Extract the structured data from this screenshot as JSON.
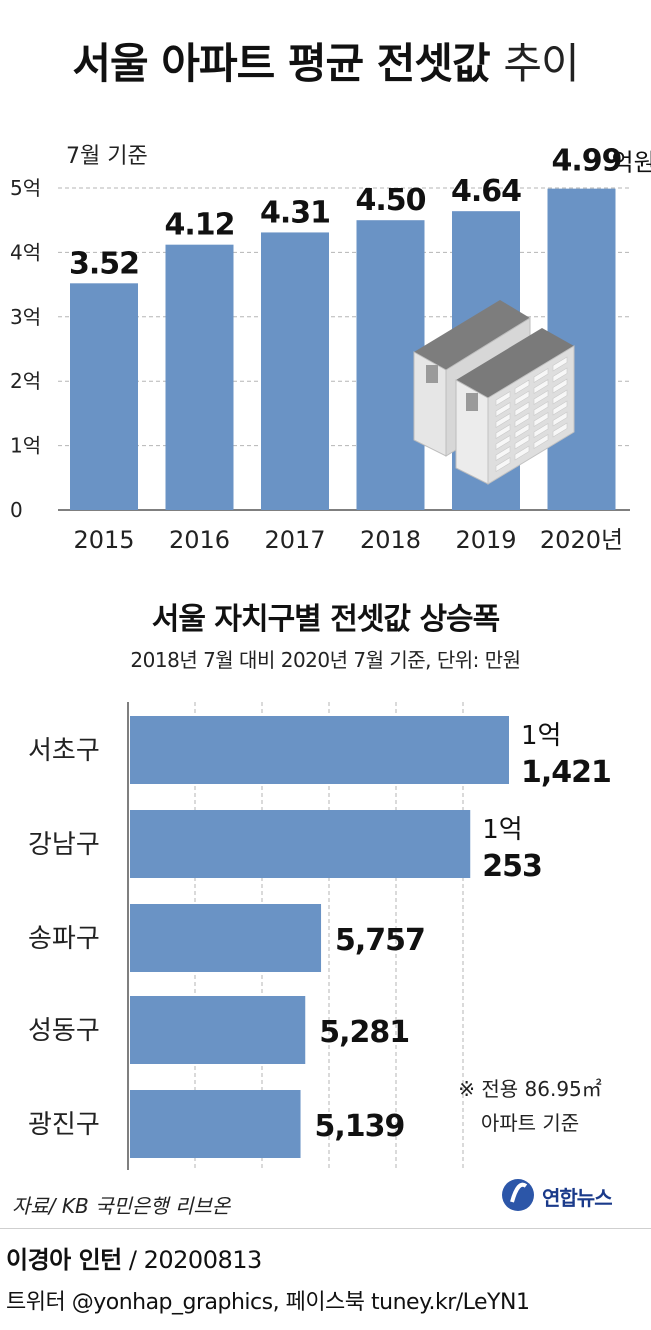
{
  "title": {
    "bold": "서울 아파트 평균 전셋값",
    "light": "추이"
  },
  "top_chart": {
    "basis": "7월 기준",
    "last_label_unit": "억원"
  },
  "bottom_title": "서울 자치구별 전셋값 상승폭",
  "bottom_note": "2018년 7월 대비 2020년 7월 기준, 단위: 만원",
  "footnote": [
    "※ 전용 86.95㎡",
    "아파트 기준"
  ],
  "source": "자료/ KB 국민은행 리브온",
  "credit": {
    "name": "이경아 인턴",
    "date": " / 20200813"
  },
  "social": "트위터 @yonhap_graphics, 페이스북 tuney.kr/LeYN1",
  "logo_text": "연합뉴스",
  "colors": {
    "bar": "#6a93c5",
    "grid": "#b5b5b5",
    "text": "#222222"
  },
  "chart_data": [
    {
      "type": "bar",
      "title": "서울 아파트 평균 전셋값 추이",
      "note": "7월 기준",
      "categories": [
        "2015",
        "2016",
        "2017",
        "2018",
        "2019",
        "2020년"
      ],
      "values": [
        3.52,
        4.12,
        4.31,
        4.5,
        4.64,
        4.99
      ],
      "value_labels": [
        "3.52",
        "4.12",
        "4.31",
        "4.50",
        "4.64",
        "4.99"
      ],
      "y_ticks": [
        0,
        1,
        2,
        3,
        4,
        5
      ],
      "y_tick_labels": [
        "0",
        "1억",
        "2억",
        "3억",
        "4억",
        "5억"
      ],
      "ylim": [
        0,
        5
      ],
      "grid": true,
      "unit": "억원"
    },
    {
      "type": "bar",
      "orientation": "horizontal",
      "title": "서울 자치구별 전셋값 상승폭",
      "note": "2018년 7월 대비 2020년 7월 기준, 단위: 만원",
      "categories": [
        "서초구",
        "강남구",
        "송파구",
        "성동구",
        "광진구"
      ],
      "values": [
        11421,
        10253,
        5757,
        5281,
        5139
      ],
      "value_labels": [
        [
          "1억",
          "1,421"
        ],
        [
          "1억",
          "253"
        ],
        [
          "5,757"
        ],
        [
          "5,281"
        ],
        [
          "5,139"
        ]
      ],
      "xlim": [
        0,
        14000
      ],
      "grid": true
    }
  ]
}
